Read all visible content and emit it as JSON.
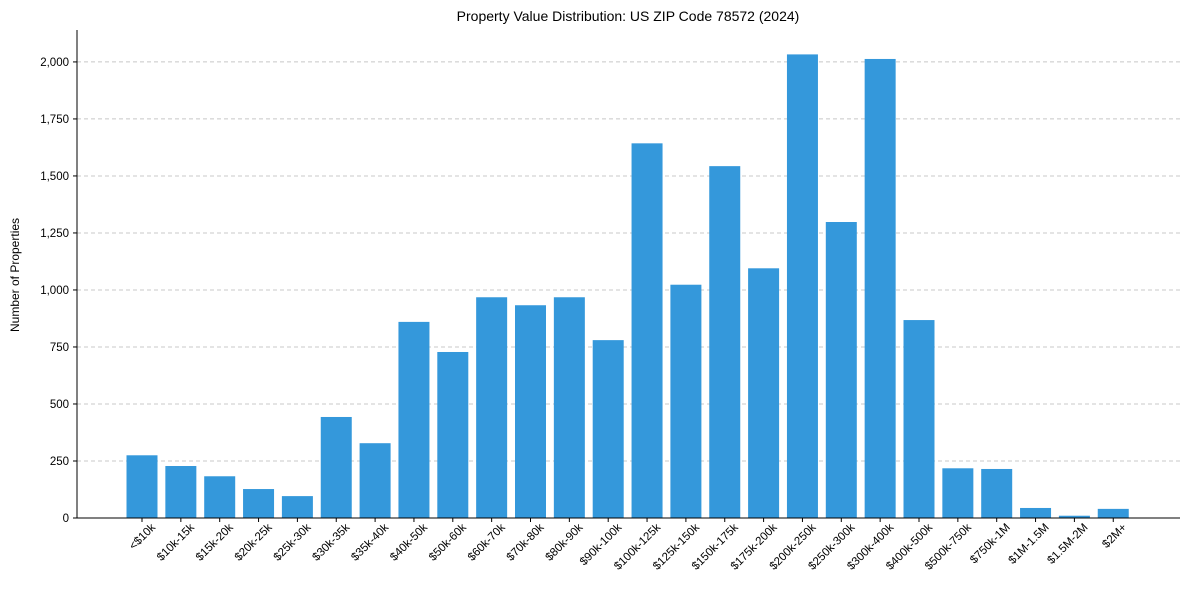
{
  "chart_data": {
    "type": "bar",
    "title": "Property Value Distribution: US ZIP Code 78572 (2024)",
    "xlabel": "",
    "ylabel": "Number of Properties",
    "ylim": [
      0,
      2140
    ],
    "yticks": [
      0,
      250,
      500,
      750,
      1000,
      1250,
      1500,
      1750,
      2000
    ],
    "ytick_labels": [
      "0",
      "250",
      "500",
      "750",
      "1,000",
      "1,250",
      "1,500",
      "1,750",
      "2,000"
    ],
    "grid": "y",
    "bar_color": "#3498db",
    "categories": [
      "<$10k",
      "$10k-15k",
      "$15k-20k",
      "$20k-25k",
      "$25k-30k",
      "$30k-35k",
      "$35k-40k",
      "$40k-50k",
      "$50k-60k",
      "$60k-70k",
      "$70k-80k",
      "$80k-90k",
      "$90k-100k",
      "$100k-125k",
      "$125k-150k",
      "$150k-175k",
      "$175k-200k",
      "$200k-250k",
      "$250k-300k",
      "$300k-400k",
      "$400k-500k",
      "$500k-750k",
      "$750k-1M",
      "$1M-1.5M",
      "$1.5M-2M",
      "$2M+"
    ],
    "values": [
      275,
      228,
      183,
      127,
      96,
      443,
      328,
      860,
      728,
      968,
      933,
      968,
      780,
      1643,
      1023,
      1543,
      1095,
      2033,
      1298,
      2013,
      868,
      218,
      215,
      44,
      10,
      40
    ]
  }
}
